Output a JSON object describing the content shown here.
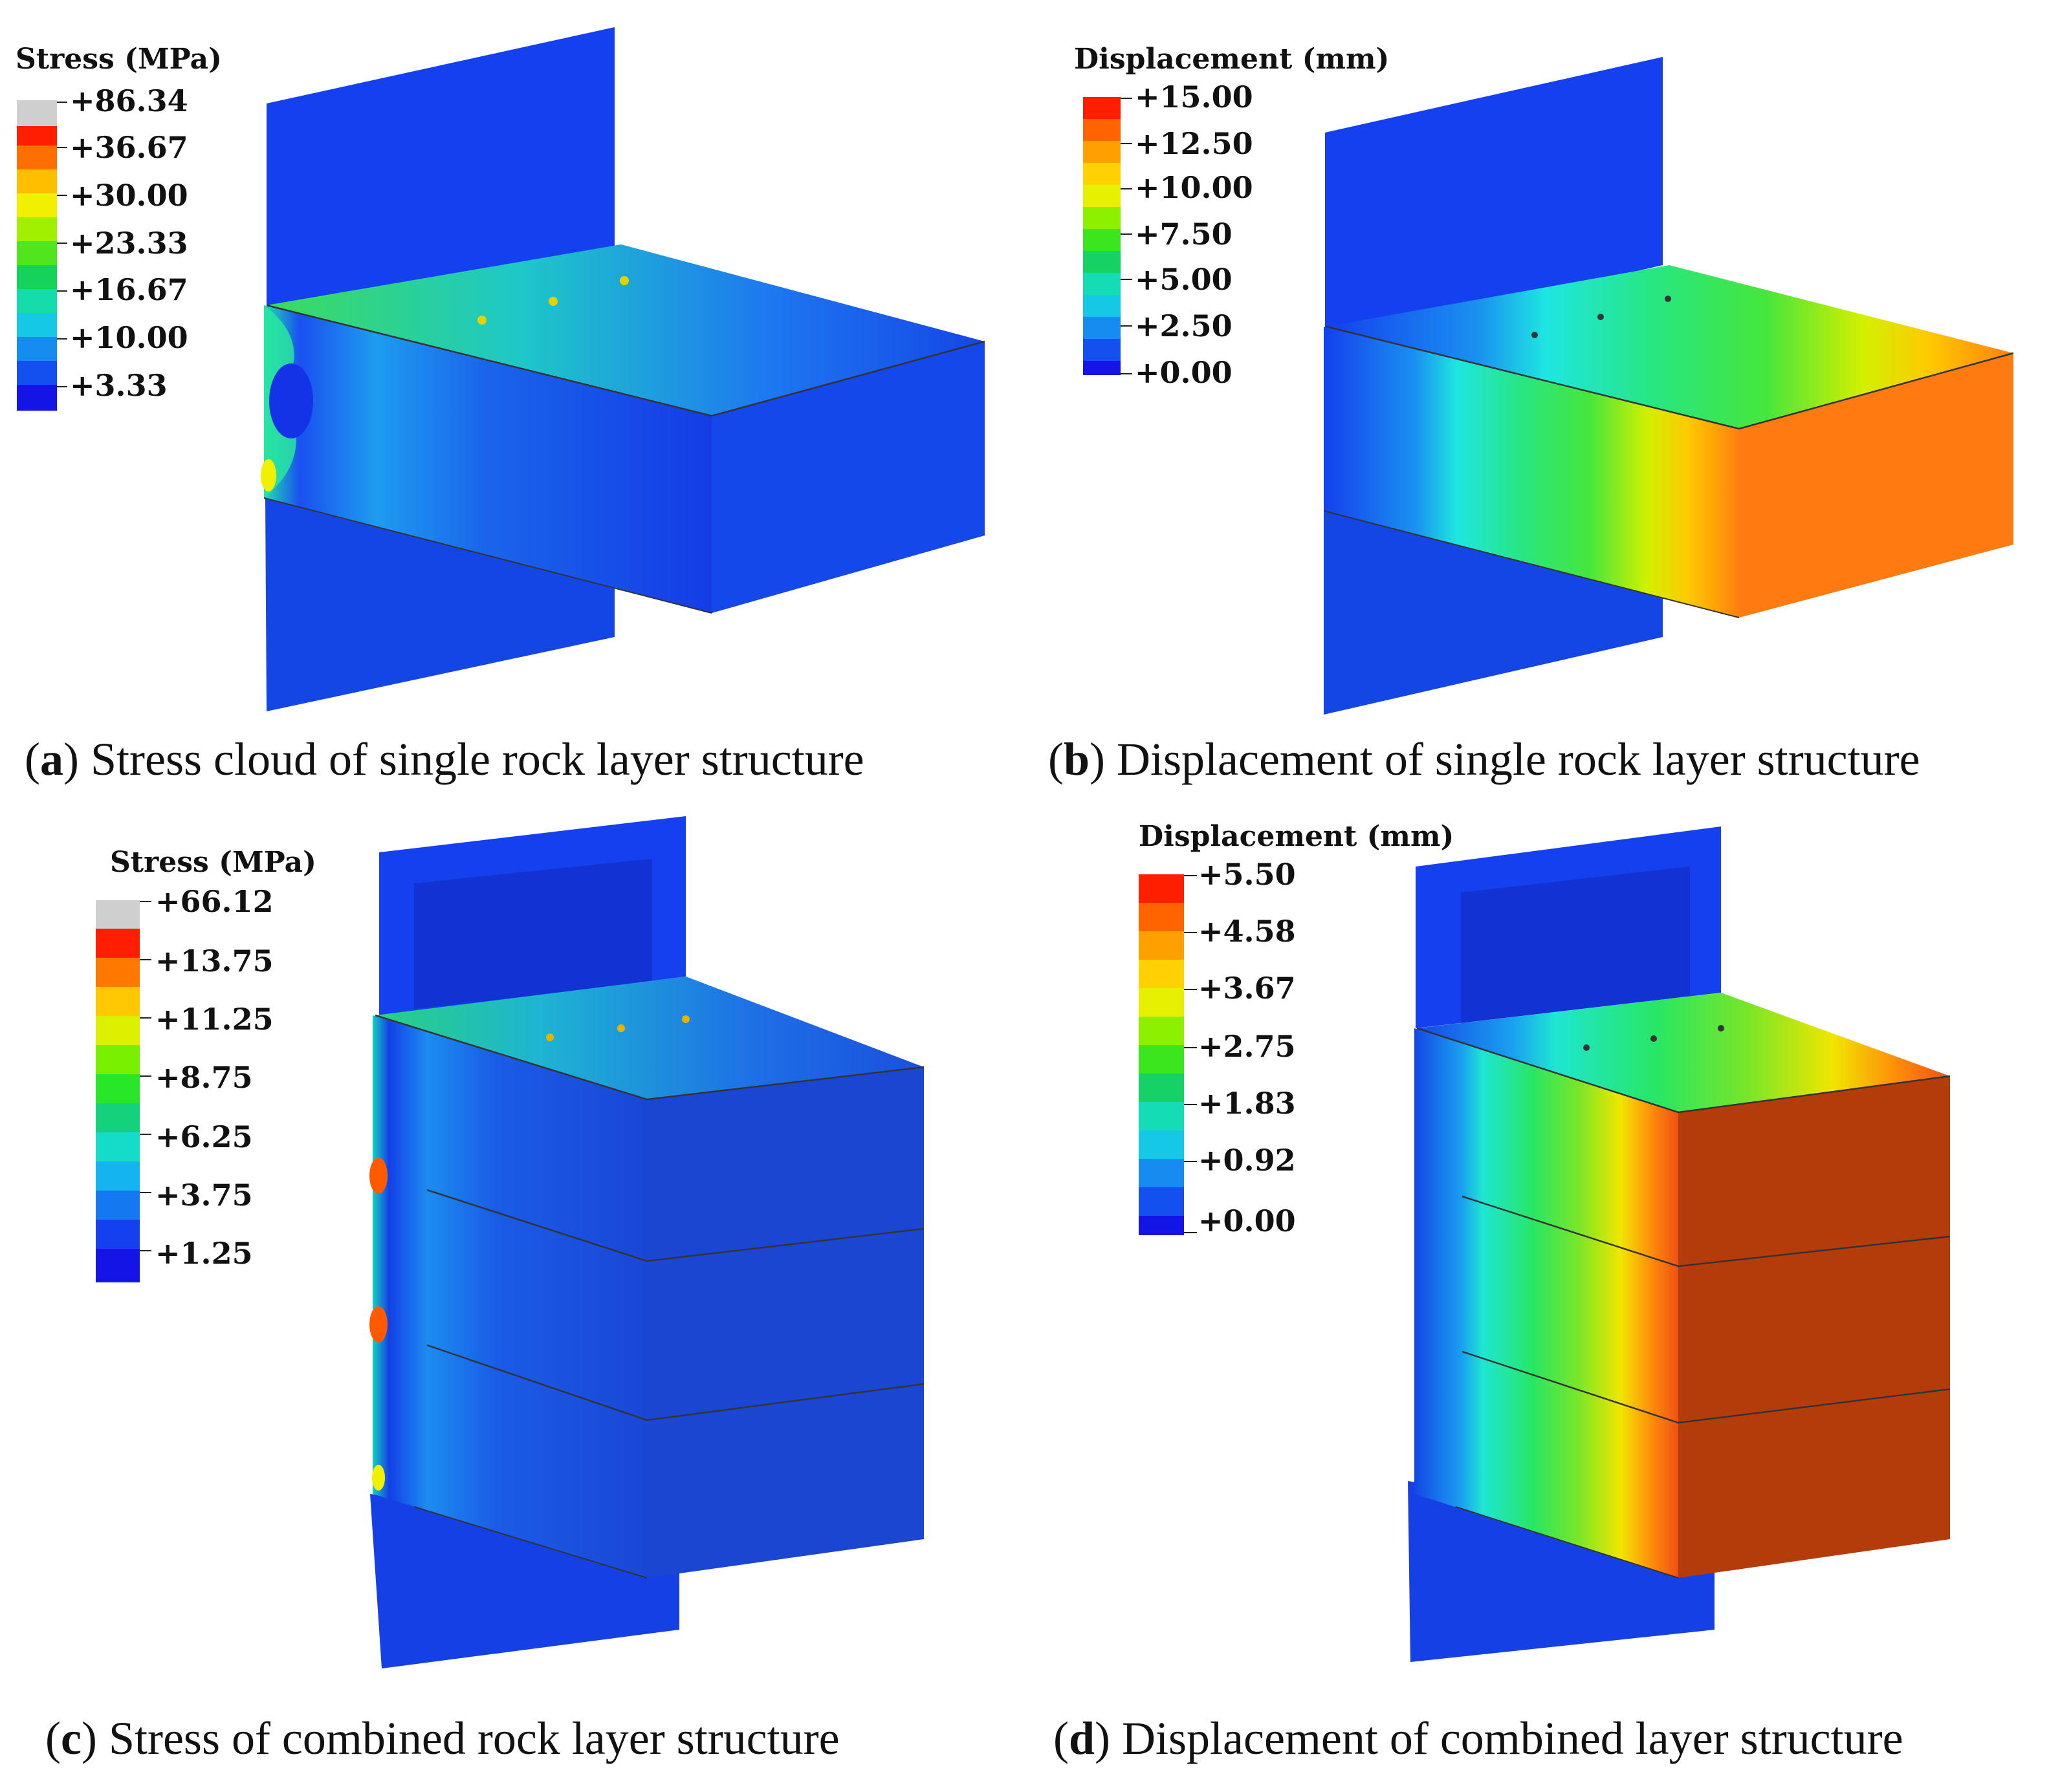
{
  "panels": [
    {
      "id": "a",
      "legend_title": "Stress (MPa)",
      "legend_ticks": [
        "+86.34",
        "+36.67",
        "+30.00",
        "+23.33",
        "+16.67",
        "+10.00",
        "+3.33"
      ],
      "caption_letter": "a",
      "caption_text": "Stress cloud of single rock layer structure",
      "field": "stress",
      "layers": 1
    },
    {
      "id": "b",
      "legend_title": "Displacement (mm)",
      "legend_ticks": [
        "+15.00",
        "+12.50",
        "+10.00",
        "+7.50",
        "+5.00",
        "+2.50",
        "+0.00"
      ],
      "caption_letter": "b",
      "caption_text": "Displacement of single rock layer structure",
      "field": "displacement",
      "layers": 1
    },
    {
      "id": "c",
      "legend_title": "Stress (MPa)",
      "legend_ticks": [
        "+66.12",
        "+13.75",
        "+11.25",
        "+8.75",
        "+6.25",
        "+3.75",
        "+1.25"
      ],
      "caption_letter": "c",
      "caption_text": "Stress of combined rock layer structure",
      "field": "stress",
      "layers": 3
    },
    {
      "id": "d",
      "legend_title": "Displacement (mm)",
      "legend_ticks": [
        "+5.50",
        "+4.58",
        "+3.67",
        "+2.75",
        "+1.83",
        "+0.92",
        "+0.00"
      ],
      "caption_letter": "d",
      "caption_text": "Displacement of combined layer structure",
      "field": "displacement",
      "layers": 3
    }
  ],
  "colors": {
    "contour_scale": [
      "#d9d9d9",
      "#ff0000",
      "#ff5a00",
      "#ffaa00",
      "#ffe600",
      "#b4ff00",
      "#3cff00",
      "#00e632",
      "#00e6aa",
      "#00d2e6",
      "#0096ff",
      "#0050ff",
      "#1414f0"
    ],
    "stress_base": "#1a3cf0",
    "stress_dark": "#0a1eb4",
    "disp_orange": "#ff7a10",
    "disp_dark_red": "#b43c0a"
  }
}
